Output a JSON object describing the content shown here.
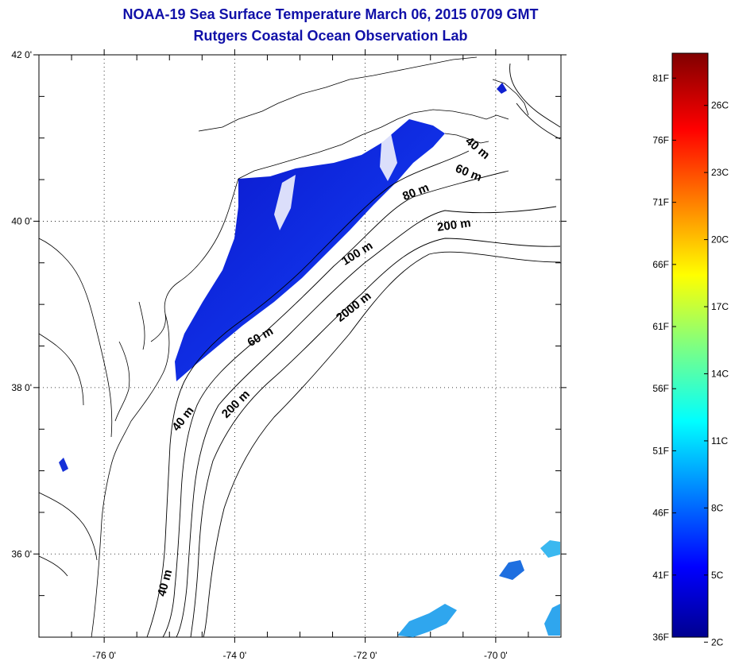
{
  "title_line1": "NOAA-19 Sea Surface Temperature March 06, 2015 0709 GMT",
  "title_line2": "Rutgers Coastal Ocean Observation Lab",
  "map": {
    "lat_ticks": [
      "42 0'",
      "40 0'",
      "38 0'",
      "36 0'"
    ],
    "lon_ticks": [
      "-76 0'",
      "-74 0'",
      "-72 0'",
      "-70 0'"
    ],
    "lat_values": [
      42,
      40,
      38,
      36
    ],
    "lon_values": [
      -76,
      -74,
      -72,
      -70
    ],
    "lat_range": [
      35,
      42
    ],
    "lon_range": [
      -77,
      -69
    ],
    "grid": "dotted",
    "isobath_labels": [
      "40 m",
      "60 m",
      "80 m",
      "200 m",
      "100 m",
      "2000 m",
      "60 m",
      "200 m",
      "40 m",
      "40 m"
    ],
    "isobath_depths_m": [
      40,
      60,
      80,
      100,
      200,
      2000
    ]
  },
  "colorbar": {
    "colormap": "jet",
    "colors": [
      "#00008f",
      "#0000ff",
      "#0080ff",
      "#00ffff",
      "#80ff80",
      "#ffff00",
      "#ff8000",
      "#ff0000",
      "#800000"
    ],
    "fahrenheit_labels": [
      "81F",
      "76F",
      "71F",
      "66F",
      "61F",
      "56F",
      "51F",
      "46F",
      "41F",
      "36F"
    ],
    "fahrenheit_values": [
      81,
      76,
      71,
      66,
      61,
      56,
      51,
      46,
      41,
      36
    ],
    "celsius_labels": [
      "26C",
      "23C",
      "20C",
      "17C",
      "14C",
      "11C",
      "8C",
      "5C",
      "2C"
    ],
    "celsius_values": [
      26,
      23,
      20,
      17,
      14,
      11,
      8,
      5,
      2
    ]
  }
}
